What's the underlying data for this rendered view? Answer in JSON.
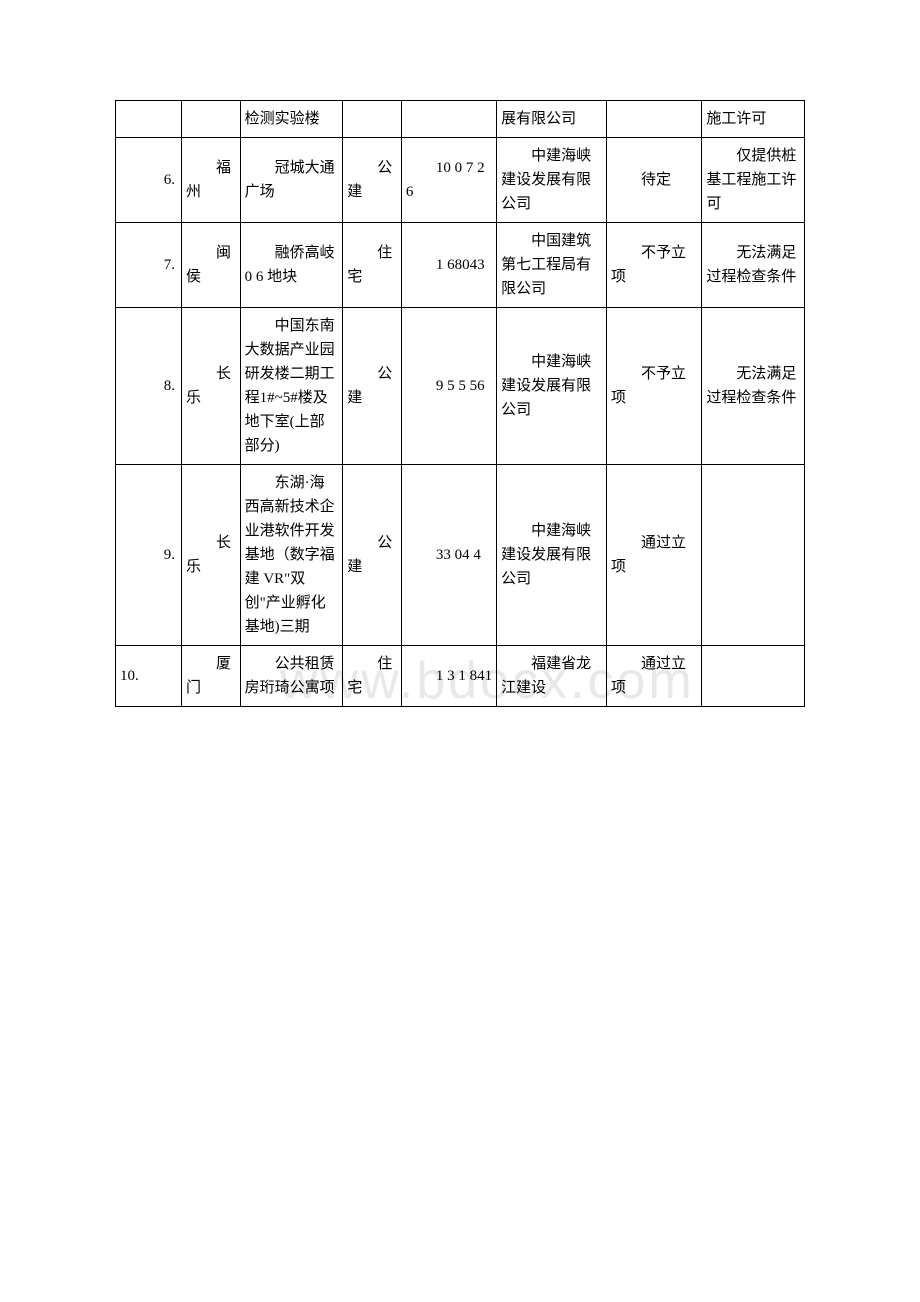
{
  "watermark": "www.bdocx.com",
  "rows": [
    {
      "idx": "",
      "city": "",
      "project": "检测实验楼",
      "type": "",
      "num": "",
      "company": "展有限公司",
      "status": "",
      "remark": "施工许可"
    },
    {
      "idx": "6.",
      "city": "福州",
      "project": "冠城大通广场",
      "type": "公建",
      "num": "10 0 7 2 6",
      "company": "中建海峡建设发展有限公司",
      "status": "待定",
      "remark": "仅提供桩基工程施工许可"
    },
    {
      "idx": "7.",
      "city": "闽侯",
      "project": "融侨高岐 0 6 地块",
      "type": "住宅",
      "num": "1 68043",
      "company": "中国建筑第七工程局有限公司",
      "status": "不予立项",
      "remark": "无法满足过程检查条件"
    },
    {
      "idx": "8.",
      "city": "长乐",
      "project": "中国东南大数据产业园研发楼二期工程1#~5#楼及地下室(上部部分)",
      "type": "公建",
      "num": "9 5 5 56",
      "company": "中建海峡建设发展有限公司",
      "status": "不予立项",
      "remark": "无法满足过程检查条件"
    },
    {
      "idx": "9.",
      "city": "长乐",
      "project": "东湖·海西高新技术企业港软件开发基地（数字福建 VR\"双创\"产业孵化基地)三期",
      "type": "公建",
      "num": "33 04 4",
      "company": "中建海峡建设发展有限公司",
      "status": "通过立项",
      "remark": ""
    },
    {
      "idx": "10.",
      "city": "厦门",
      "project": "公共租赁房珩琦公寓项",
      "type": "住宅",
      "num": "1 3 1 841",
      "company": "福建省龙江建设",
      "status": "通过立项",
      "remark": ""
    }
  ]
}
